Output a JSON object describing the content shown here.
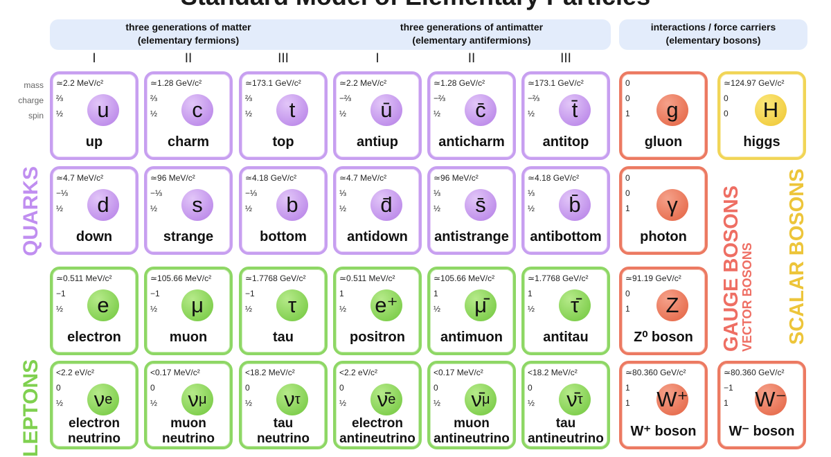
{
  "title": "Standard Model of Elementary Particles",
  "header": {
    "matter": {
      "line1": "three generations of matter",
      "line2": "(elementary fermions)"
    },
    "antimatter": {
      "line1": "three generations of antimatter",
      "line2": "(elementary antifermions)"
    },
    "bosons": {
      "line1": "interactions / force carriers",
      "line2": "(elementary bosons)"
    }
  },
  "generations": [
    "I",
    "II",
    "III",
    "I",
    "II",
    "III"
  ],
  "property_labels": {
    "mass": "mass",
    "charge": "charge",
    "spin": "spin"
  },
  "side_labels": {
    "quarks": "QUARKS",
    "leptons": "LEPTONS",
    "gauge_bosons": "GAUGE BOSONS",
    "vector_bosons": "VECTOR BOSONS",
    "scalar_bosons": "SCALAR BOSONS"
  },
  "colors": {
    "quark": "#c79ff0",
    "lepton": "#8ed765",
    "gauge": "#ec7a62",
    "scalar": "#f1d557",
    "band": "#e3ecfb"
  },
  "rows": [
    {
      "particles": [
        {
          "kind": "quark",
          "mass": "≃2.2 MeV/c²",
          "charge": "⅔",
          "spin": "½",
          "symbol": "u",
          "name": "up"
        },
        {
          "kind": "quark",
          "mass": "≃1.28 GeV/c²",
          "charge": "⅔",
          "spin": "½",
          "symbol": "c",
          "name": "charm"
        },
        {
          "kind": "quark",
          "mass": "≃173.1 GeV/c²",
          "charge": "⅔",
          "spin": "½",
          "symbol": "t",
          "name": "top"
        },
        {
          "kind": "quark",
          "mass": "≃2.2 MeV/c²",
          "charge": "−⅔",
          "spin": "½",
          "symbol": "ū",
          "name": "antiup"
        },
        {
          "kind": "quark",
          "mass": "≃1.28 GeV/c²",
          "charge": "−⅔",
          "spin": "½",
          "symbol": "c̄",
          "name": "anticharm"
        },
        {
          "kind": "quark",
          "mass": "≃173.1 GeV/c²",
          "charge": "−⅔",
          "spin": "½",
          "symbol": "t̄",
          "name": "antitop"
        },
        {
          "kind": "gauge",
          "mass": "0",
          "charge": "0",
          "spin": "1",
          "symbol": "g",
          "name": "gluon"
        },
        {
          "kind": "scalar",
          "mass": "≃124.97 GeV/c²",
          "charge": "0",
          "spin": "0",
          "symbol": "H",
          "name": "higgs"
        }
      ]
    },
    {
      "particles": [
        {
          "kind": "quark",
          "mass": "≃4.7 MeV/c²",
          "charge": "−⅓",
          "spin": "½",
          "symbol": "d",
          "name": "down"
        },
        {
          "kind": "quark",
          "mass": "≃96 MeV/c²",
          "charge": "−⅓",
          "spin": "½",
          "symbol": "s",
          "name": "strange"
        },
        {
          "kind": "quark",
          "mass": "≃4.18 GeV/c²",
          "charge": "−⅓",
          "spin": "½",
          "symbol": "b",
          "name": "bottom"
        },
        {
          "kind": "quark",
          "mass": "≃4.7 MeV/c²",
          "charge": "⅓",
          "spin": "½",
          "symbol": "d̄",
          "name": "antidown"
        },
        {
          "kind": "quark",
          "mass": "≃96 MeV/c²",
          "charge": "⅓",
          "spin": "½",
          "symbol": "s̄",
          "name": "antistrange"
        },
        {
          "kind": "quark",
          "mass": "≃4.18 GeV/c²",
          "charge": "⅓",
          "spin": "½",
          "symbol": "b̄",
          "name": "antibottom"
        },
        {
          "kind": "gauge",
          "mass": "0",
          "charge": "0",
          "spin": "1",
          "symbol": "γ",
          "name": "photon"
        }
      ]
    },
    {
      "particles": [
        {
          "kind": "lepton",
          "mass": "≃0.511 MeV/c²",
          "charge": "−1",
          "spin": "½",
          "symbol": "e",
          "name": "electron"
        },
        {
          "kind": "lepton",
          "mass": "≃105.66 MeV/c²",
          "charge": "−1",
          "spin": "½",
          "symbol": "μ",
          "name": "muon"
        },
        {
          "kind": "lepton",
          "mass": "≃1.7768 GeV/c²",
          "charge": "−1",
          "spin": "½",
          "symbol": "τ",
          "name": "tau"
        },
        {
          "kind": "lepton",
          "mass": "≃0.511 MeV/c²",
          "charge": "1",
          "spin": "½",
          "symbol": "e⁺",
          "name": "positron"
        },
        {
          "kind": "lepton",
          "mass": "≃105.66 MeV/c²",
          "charge": "1",
          "spin": "½",
          "symbol": "μ̄",
          "name": "antimuon"
        },
        {
          "kind": "lepton",
          "mass": "≃1.7768 GeV/c²",
          "charge": "1",
          "spin": "½",
          "symbol": "τ̄",
          "name": "antitau"
        },
        {
          "kind": "gauge",
          "mass": "≃91.19 GeV/c²",
          "charge": "0",
          "spin": "1",
          "symbol": "Z",
          "name": "Z⁰ boson"
        }
      ]
    },
    {
      "particles": [
        {
          "kind": "lepton",
          "mass": "<2.2 eV/c²",
          "charge": "0",
          "spin": "½",
          "symbol": "ν",
          "sub": "e",
          "name": "electron",
          "name2": "neutrino"
        },
        {
          "kind": "lepton",
          "mass": "<0.17 MeV/c²",
          "charge": "0",
          "spin": "½",
          "symbol": "ν",
          "sub": "μ",
          "name": "muon",
          "name2": "neutrino"
        },
        {
          "kind": "lepton",
          "mass": "<18.2 MeV/c²",
          "charge": "0",
          "spin": "½",
          "symbol": "ν",
          "sub": "τ",
          "name": "tau",
          "name2": "neutrino"
        },
        {
          "kind": "lepton",
          "mass": "<2.2 eV/c²",
          "charge": "0",
          "spin": "½",
          "symbol": "ν̄",
          "sub": "e",
          "name": "electron",
          "name2": "antineutrino"
        },
        {
          "kind": "lepton",
          "mass": "<0.17 MeV/c²",
          "charge": "0",
          "spin": "½",
          "symbol": "ν̄",
          "sub": "μ",
          "name": "muon",
          "name2": "antineutrino"
        },
        {
          "kind": "lepton",
          "mass": "<18.2 MeV/c²",
          "charge": "0",
          "spin": "½",
          "symbol": "ν̄",
          "sub": "τ",
          "name": "tau",
          "name2": "antineutrino"
        },
        {
          "kind": "gauge",
          "mass": "≃80.360 GeV/c²",
          "charge": "1",
          "spin": "1",
          "symbol": "W⁺",
          "name": "W⁺ boson"
        },
        {
          "kind": "gauge",
          "mass": "≃80.360 GeV/c²",
          "charge": "−1",
          "spin": "1",
          "symbol": "W⁻",
          "name": "W⁻ boson"
        }
      ]
    }
  ]
}
